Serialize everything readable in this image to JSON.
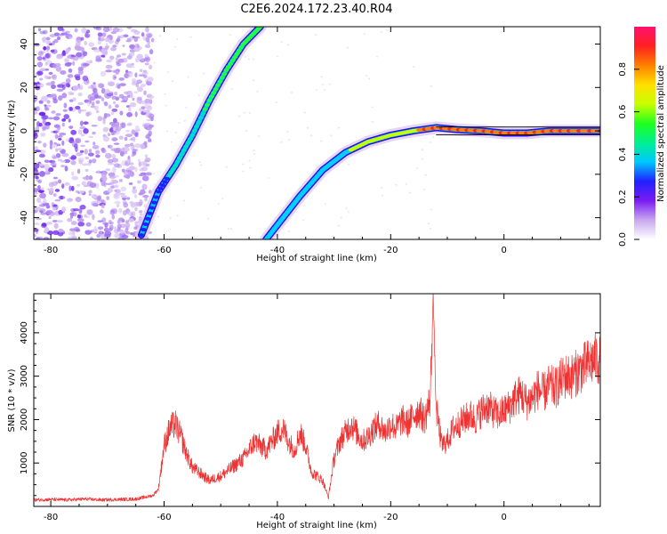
{
  "title": "C2E6.2024.172.23.40.R04",
  "chart_data": [
    {
      "type": "heatmap",
      "xlabel": "Height of straight line (km)",
      "ylabel": "Frequency (Hz)",
      "xlim": [
        -83,
        17
      ],
      "ylim": [
        -50,
        48
      ],
      "xticks": [
        -80,
        -60,
        -40,
        -20,
        0
      ],
      "yticks": [
        -40,
        -20,
        0,
        20,
        40
      ],
      "colorbar": {
        "label": "Normalized spectral amplitude",
        "range": [
          0,
          1
        ],
        "ticks": [
          "0.0",
          "0.2",
          "0.4",
          "0.6",
          "0.8"
        ],
        "colors": [
          "#ffffff",
          "#c9a8f0",
          "#7a1cf2",
          "#2020ff",
          "#00c8ff",
          "#00f090",
          "#20ff20",
          "#c8ff00",
          "#ffe000",
          "#ff8000",
          "#ff2020",
          "#ff1070"
        ]
      },
      "features": [
        {
          "name": "left steep trace",
          "points": [
            [
              -64,
              -48
            ],
            [
              -61,
              -28
            ],
            [
              -58,
              -16
            ],
            [
              -55,
              -2
            ],
            [
              -52,
              14
            ],
            [
              -49,
              28
            ],
            [
              -46,
              40
            ],
            [
              -43,
              48
            ]
          ]
        },
        {
          "name": "curved trace",
          "points": [
            [
              -42,
              -50
            ],
            [
              -39,
              -40
            ],
            [
              -36,
              -30
            ],
            [
              -32,
              -18
            ],
            [
              -28,
              -10
            ],
            [
              -24,
              -5
            ],
            [
              -20,
              -2
            ],
            [
              -16,
              0
            ],
            [
              -12,
              1.5
            ],
            [
              -8,
              0.5
            ],
            [
              -4,
              0
            ],
            [
              0,
              -1
            ],
            [
              4,
              -1
            ],
            [
              8,
              0
            ],
            [
              12,
              0
            ],
            [
              17,
              0
            ]
          ]
        }
      ]
    },
    {
      "type": "line",
      "xlabel": "Height of straight line (km)",
      "ylabel": "SNR (10 * v/v)",
      "xlim": [
        -83,
        17
      ],
      "ylim": [
        0,
        4900
      ],
      "xticks": [
        -80,
        -60,
        -40,
        -20,
        0
      ],
      "yticks": [
        1000,
        2000,
        3000,
        4000
      ],
      "color": "#ee3333",
      "x": [
        -83,
        -80,
        -77,
        -74,
        -71,
        -68,
        -65,
        -62,
        -61,
        -60,
        -59,
        -58,
        -57,
        -56,
        -55,
        -54,
        -53,
        -52,
        -51,
        -50,
        -49,
        -48,
        -47,
        -46,
        -45,
        -44,
        -43,
        -42,
        -41,
        -40,
        -39,
        -38,
        -37,
        -36,
        -35,
        -34,
        -33,
        -32,
        -31,
        -30,
        -29,
        -28,
        -27,
        -26,
        -25,
        -24,
        -23,
        -22,
        -21,
        -20,
        -19,
        -18,
        -17,
        -16,
        -15,
        -14,
        -13,
        -12.5,
        -12,
        -11,
        -10,
        -9,
        -8,
        -7,
        -6,
        -5,
        -4,
        -3,
        -2,
        -1,
        0,
        1,
        2,
        3,
        4,
        5,
        6,
        7,
        8,
        9,
        10,
        11,
        12,
        13,
        14,
        15,
        16,
        17
      ],
      "y": [
        150,
        160,
        150,
        170,
        150,
        160,
        170,
        250,
        400,
        1400,
        1800,
        1900,
        1600,
        1200,
        900,
        800,
        700,
        600,
        650,
        700,
        800,
        900,
        1000,
        1100,
        1300,
        1500,
        1400,
        1300,
        1500,
        1700,
        1800,
        1500,
        1300,
        1700,
        1400,
        800,
        700,
        600,
        200,
        1100,
        1500,
        1700,
        1900,
        1700,
        1500,
        1600,
        1800,
        1900,
        1700,
        1900,
        1800,
        2000,
        1900,
        2100,
        2200,
        2000,
        2500,
        4900,
        2300,
        1400,
        1500,
        1800,
        1900,
        2000,
        2100,
        2000,
        2200,
        2300,
        2200,
        2100,
        2200,
        2300,
        2500,
        2600,
        2400,
        2500,
        2700,
        2600,
        2800,
        2700,
        2900,
        3000,
        3000,
        3100,
        3200,
        3300,
        3400,
        3350
      ]
    }
  ]
}
